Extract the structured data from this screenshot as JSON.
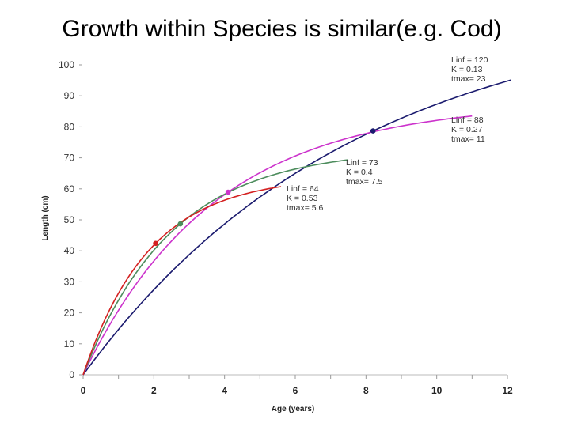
{
  "slide": {
    "title": "Growth within Species is similar(e.g. Cod)"
  },
  "chart_data": {
    "type": "line",
    "xlabel": "Age (years)",
    "ylabel": "Length (cm)",
    "xlim": [
      0,
      12
    ],
    "ylim": [
      0,
      100
    ],
    "xticks": [
      "0",
      "2",
      "4",
      "6",
      "8",
      "10",
      "12"
    ],
    "yticks": [
      "0",
      "10",
      "20",
      "30",
      "40",
      "50",
      "60",
      "70",
      "80",
      "90",
      "100"
    ],
    "series": [
      {
        "name": "Linf=120",
        "color": "#1a1a6e",
        "linf": 120,
        "k": 0.13,
        "tmax": 23,
        "x_end": 12.1,
        "marker_x": 8.2,
        "annotation": [
          "Linf = 120",
          "K    = 0.13",
          "tmax= 23"
        ]
      },
      {
        "name": "Linf=88",
        "color": "#cc33cc",
        "linf": 88,
        "k": 0.27,
        "tmax": 11,
        "x_end": 11.0,
        "marker_x": 4.1,
        "annotation": [
          "Linf = 88",
          "K    = 0.27",
          "tmax= 11"
        ]
      },
      {
        "name": "Linf=73",
        "color": "#4c8c5c",
        "linf": 73,
        "k": 0.4,
        "tmax": 7.5,
        "x_end": 7.5,
        "marker_x": 2.75,
        "annotation": [
          "Linf = 73",
          "K    = 0.4",
          "tmax= 7.5"
        ]
      },
      {
        "name": "Linf=64",
        "color": "#d42020",
        "linf": 64,
        "k": 0.53,
        "tmax": 5.6,
        "x_end": 5.6,
        "marker_x": 2.05,
        "annotation": [
          "Linf = 64",
          "K    = 0.53",
          "tmax= 5.6"
        ]
      }
    ]
  }
}
